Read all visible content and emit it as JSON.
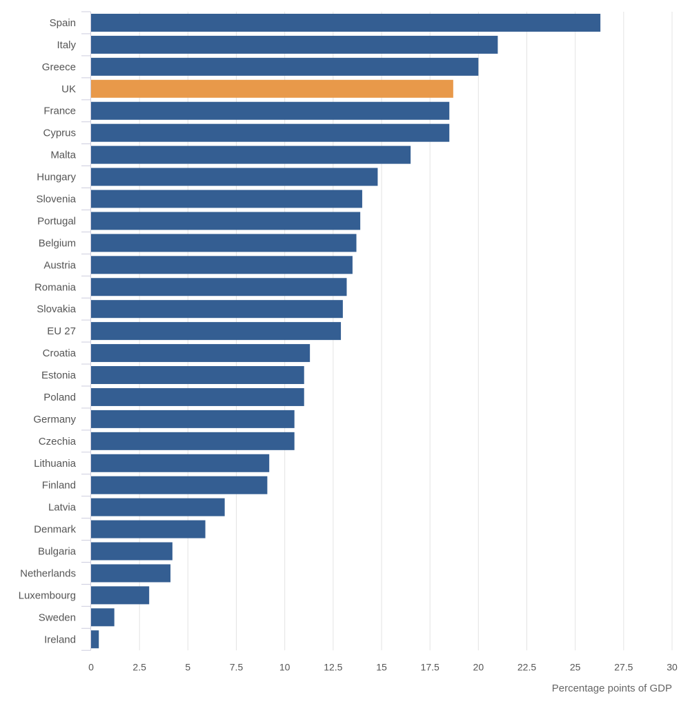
{
  "chart_data": {
    "type": "bar",
    "orientation": "horizontal",
    "title": "",
    "xlabel": "Percentage points of GDP",
    "ylabel": "",
    "xlim": [
      0,
      30
    ],
    "xticks": [
      0,
      2.5,
      5,
      7.5,
      10,
      12.5,
      15,
      17.5,
      20,
      22.5,
      25,
      27.5,
      30
    ],
    "xtick_labels": [
      "0",
      "2.5",
      "5",
      "7.5",
      "10",
      "12.5",
      "15",
      "17.5",
      "20",
      "22.5",
      "25",
      "27.5",
      "30"
    ],
    "grid": "vertical",
    "legend": "none",
    "colors": {
      "default": "#345e92",
      "highlight": "#e8994a",
      "grid": "#e3e3e3",
      "axis": "#ccccdd"
    },
    "highlight_category": "UK",
    "categories": [
      "Spain",
      "Italy",
      "Greece",
      "UK",
      "France",
      "Cyprus",
      "Malta",
      "Hungary",
      "Slovenia",
      "Portugal",
      "Belgium",
      "Austria",
      "Romania",
      "Slovakia",
      "EU 27",
      "Croatia",
      "Estonia",
      "Poland",
      "Germany",
      "Czechia",
      "Lithuania",
      "Finland",
      "Latvia",
      "Denmark",
      "Bulgaria",
      "Netherlands",
      "Luxembourg",
      "Sweden",
      "Ireland"
    ],
    "values": [
      26.3,
      21.0,
      20.0,
      18.7,
      18.5,
      18.5,
      16.5,
      14.8,
      14.0,
      13.9,
      13.7,
      13.5,
      13.2,
      13.0,
      12.9,
      11.3,
      11.0,
      11.0,
      10.5,
      10.5,
      9.2,
      9.1,
      6.9,
      5.9,
      4.2,
      4.1,
      3.0,
      1.2,
      0.4
    ]
  }
}
